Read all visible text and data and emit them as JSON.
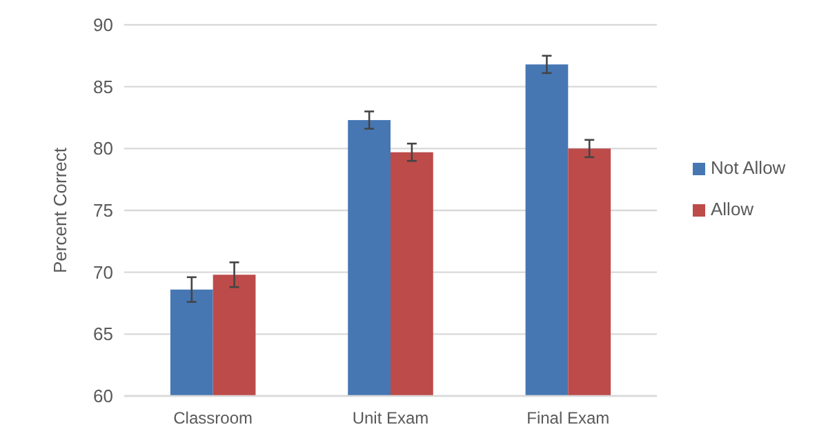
{
  "chart_data": {
    "type": "bar",
    "ylabel": "Percent Correct",
    "categories": [
      "Classroom",
      "Unit Exam",
      "Final Exam"
    ],
    "series": [
      {
        "name": "Not Allow",
        "color": "#4677b3",
        "values": [
          68.6,
          82.3,
          86.8
        ],
        "errors": [
          1.0,
          0.7,
          0.7
        ]
      },
      {
        "name": "Allow",
        "color": "#bd4b4a",
        "values": [
          69.8,
          79.7,
          80.0
        ],
        "errors": [
          1.0,
          0.7,
          0.7
        ]
      }
    ],
    "ylim": [
      60,
      90
    ],
    "yticks": [
      60,
      65,
      70,
      75,
      80,
      85,
      90
    ],
    "grid": "y",
    "legend": "right"
  }
}
